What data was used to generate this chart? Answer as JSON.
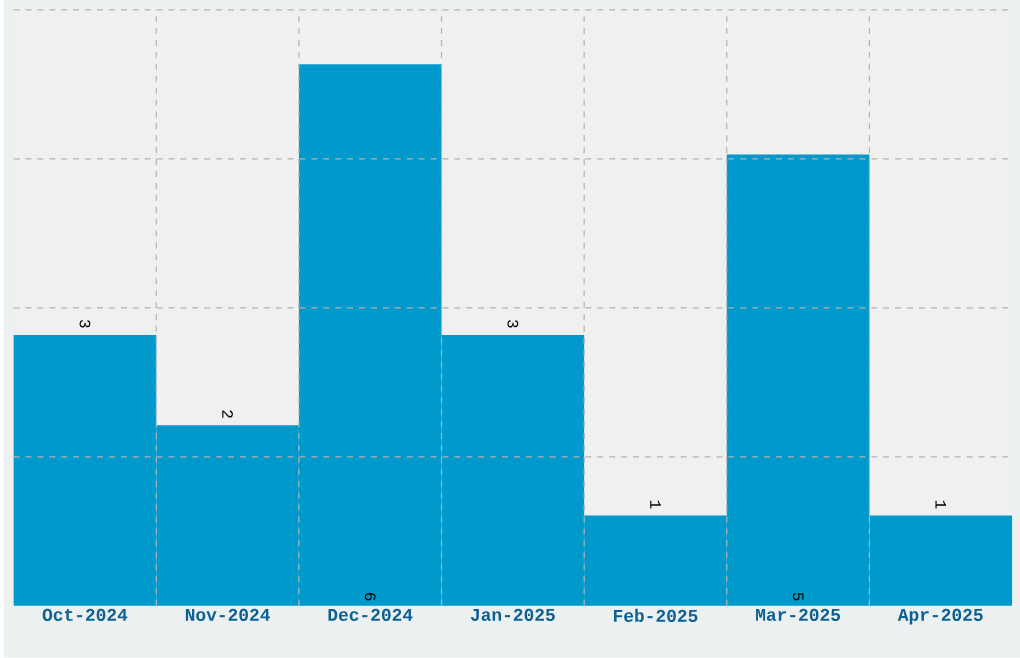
{
  "chart_data": {
    "type": "bar",
    "categories": [
      "Oct-2024",
      "Nov-2024",
      "Dec-2024",
      "Jan-2025",
      "Feb-2025",
      "Mar-2025",
      "Apr-2025"
    ],
    "values": [
      3,
      2,
      6,
      3,
      1,
      5,
      1
    ],
    "color": "#0099cc",
    "ylim": [
      0,
      6.6
    ],
    "yticks": [
      {
        "value": 1.65,
        "label": null
      },
      {
        "value": 3.3,
        "label": null
      },
      {
        "value": 4.95,
        "label": null
      },
      {
        "value": 6.6,
        "label": null
      }
    ],
    "grid": true,
    "data_labels": true,
    "tick_labels": "x"
  }
}
